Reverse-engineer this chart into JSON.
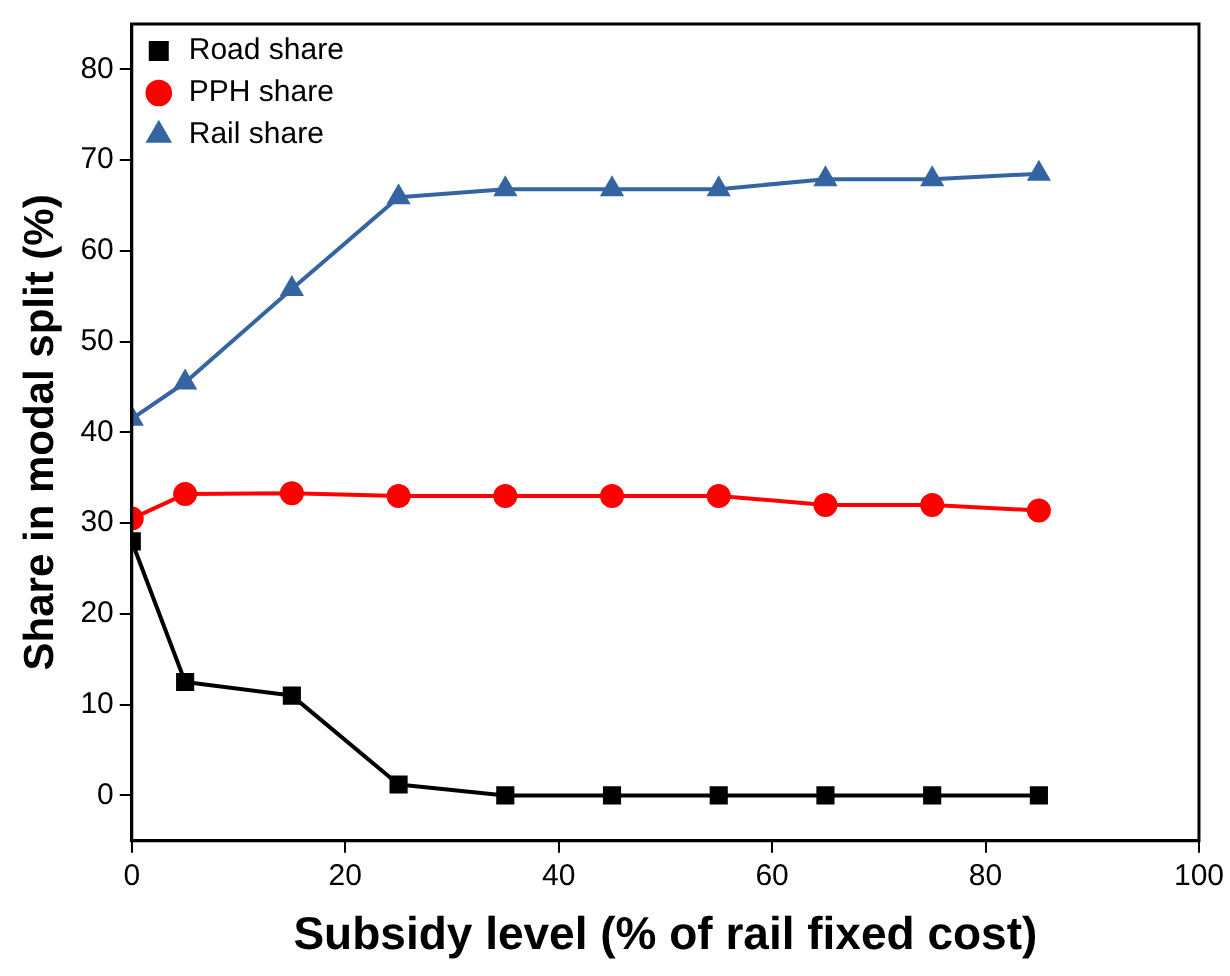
{
  "chart_data": {
    "type": "line",
    "xlabel": "Subsidy level (% of rail fixed cost)",
    "ylabel": "Share in modal split (%)",
    "x": [
      0,
      5,
      15,
      25,
      35,
      45,
      55,
      65,
      75,
      85
    ],
    "series": [
      {
        "name": "Road share",
        "color": "#000000",
        "marker": "square",
        "values": [
          28,
          12.5,
          11,
          1.2,
          0,
          0,
          0,
          0,
          0,
          0
        ]
      },
      {
        "name": "PPH share",
        "color": "#ff0000",
        "marker": "circle",
        "values": [
          30.5,
          33.2,
          33.3,
          33,
          33,
          33,
          33,
          32,
          32,
          31.4
        ]
      },
      {
        "name": "Rail share",
        "color": "#3565a0",
        "marker": "triangle",
        "values": [
          41.5,
          45.5,
          55.8,
          65.9,
          66.8,
          66.8,
          66.8,
          67.9,
          67.9,
          68.5
        ]
      }
    ],
    "xlim": [
      0,
      100
    ],
    "xticks": [
      0,
      20,
      40,
      60,
      80,
      100
    ],
    "ylim": [
      -5,
      85
    ],
    "yticks": [
      0,
      10,
      20,
      30,
      40,
      50,
      60,
      70,
      80
    ],
    "grid": false,
    "legend": "top left",
    "line_style": "solid"
  }
}
